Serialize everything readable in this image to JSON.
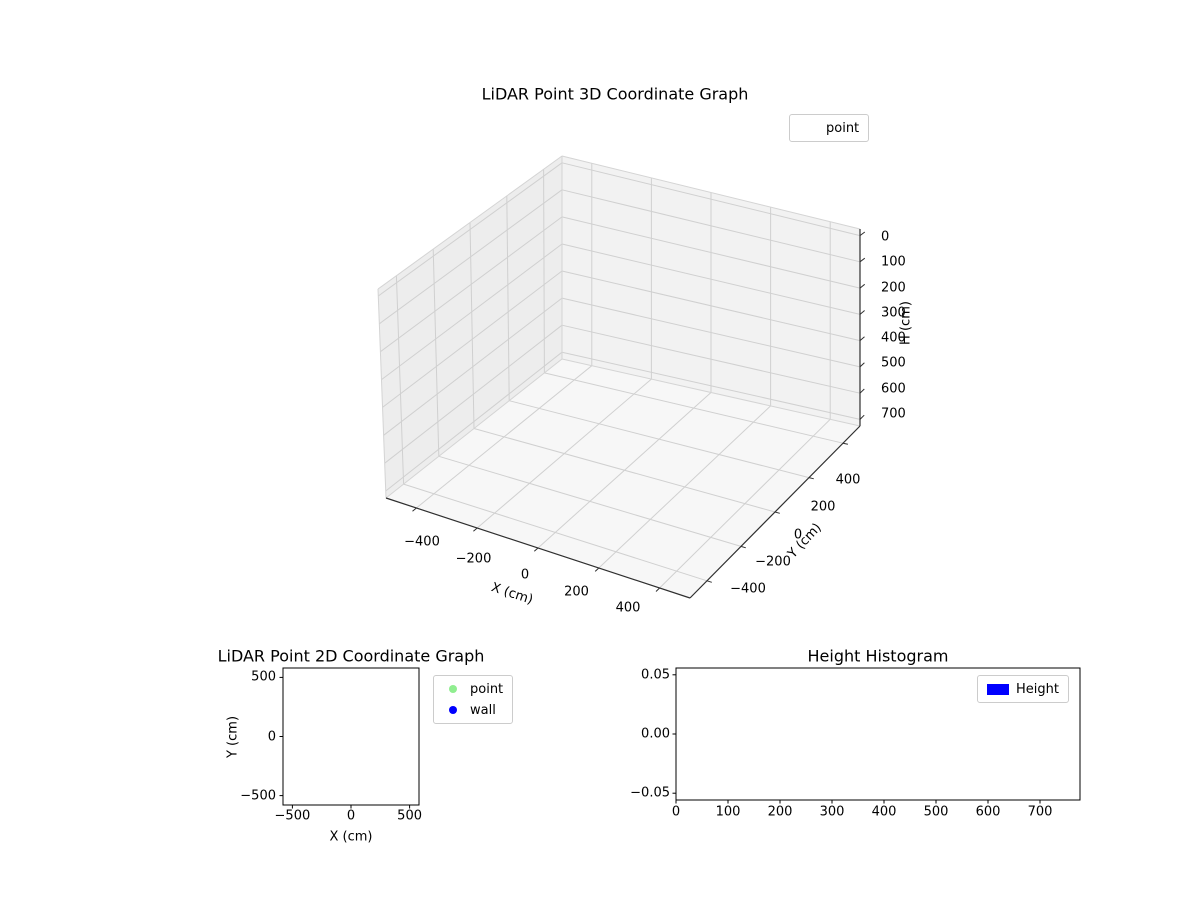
{
  "colors": {
    "background": "#ffffff",
    "text": "#000000",
    "grid3d": "#d0d0d0",
    "pane_left": "#ededed",
    "pane_right": "#f2f2f2",
    "pane_floor": "#f7f7f7",
    "pane_edge": "#d4d4d4",
    "axis_line": "#2f2f2f",
    "tick_color": "#000000",
    "legend_border": "#cccccc"
  },
  "chart_data": [
    {
      "id": "plot3d",
      "type": "scatter3d",
      "title": "LiDAR Point 3D Coordinate Graph",
      "xlabel": "X (cm)",
      "ylabel": "Y (cm)",
      "zlabel": "H (cm)",
      "xlim": [
        -500,
        500
      ],
      "ylim": [
        -500,
        500
      ],
      "zlim": [
        0,
        700
      ],
      "zlim_display": [
        -25,
        725
      ],
      "z_axis_inverted": true,
      "xticks": [
        -400,
        -200,
        0,
        200,
        400
      ],
      "yticks": [
        -400,
        -200,
        0,
        200,
        400
      ],
      "zticks": [
        0,
        100,
        200,
        300,
        400,
        500,
        600,
        700
      ],
      "grid": true,
      "legend": [
        {
          "label": "point",
          "marker": "none",
          "color": "transparent"
        }
      ],
      "series": [
        {
          "name": "point",
          "points": []
        }
      ]
    },
    {
      "id": "plot2d",
      "type": "scatter",
      "title": "LiDAR Point 2D Coordinate Graph",
      "xlabel": "X (cm)",
      "ylabel": "Y (cm)",
      "xlim": [
        -580,
        580
      ],
      "ylim": [
        -580,
        580
      ],
      "xticks": [
        -500,
        0,
        500
      ],
      "yticks": [
        500,
        0,
        -500
      ],
      "grid": false,
      "legend": [
        {
          "label": "point",
          "marker": "circle",
          "color": "#90ee90"
        },
        {
          "label": "wall",
          "marker": "circle",
          "color": "#0000ff"
        }
      ],
      "series": [
        {
          "name": "point",
          "points": []
        },
        {
          "name": "wall",
          "points": []
        }
      ]
    },
    {
      "id": "hist",
      "type": "bar",
      "title": "Height Histogram",
      "xlabel": "",
      "ylabel": "",
      "xlim": [
        0,
        777
      ],
      "ylim": [
        -0.0557,
        0.0557
      ],
      "xticks": [
        0,
        100,
        200,
        300,
        400,
        500,
        600,
        700
      ],
      "yticks": [
        0.05,
        0,
        -0.05
      ],
      "ytick_labels": [
        "0.05",
        "0.00",
        "−0.05"
      ],
      "grid": false,
      "legend": [
        {
          "label": "Height",
          "marker": "rect",
          "color": "#0000ff"
        }
      ],
      "values": []
    }
  ]
}
